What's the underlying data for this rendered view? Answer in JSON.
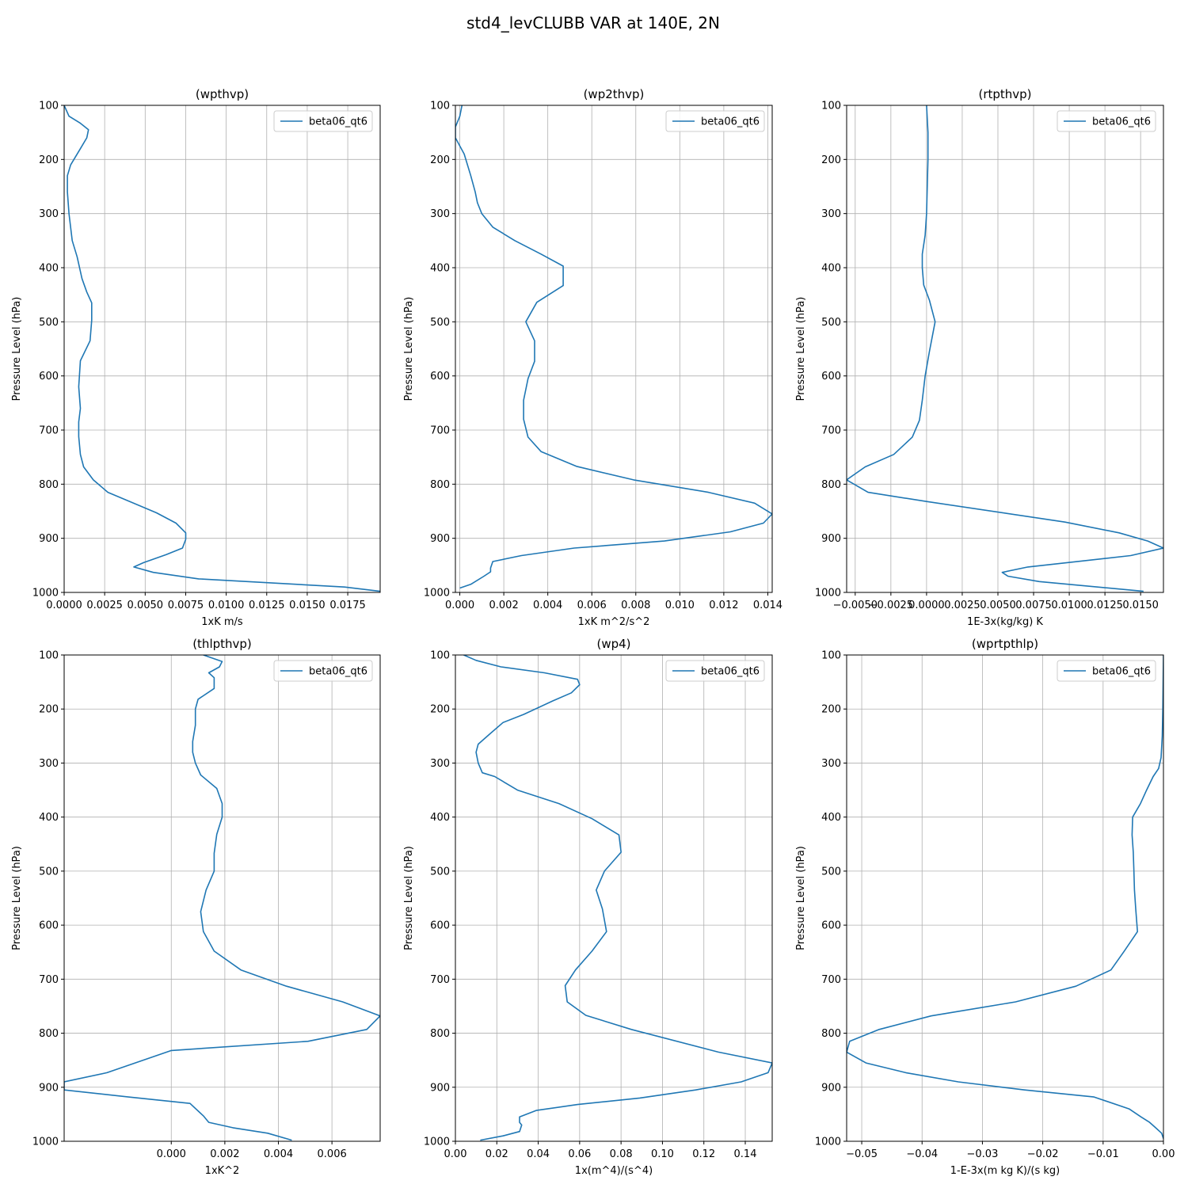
{
  "figure_title": "std4_levCLUBB VAR at 140E, 2N",
  "line_color": "#1f77b4",
  "grid_color": "#b0b0b0",
  "chart_data": [
    {
      "type": "line",
      "title": "(wpthvp)",
      "xlabel": "1xK m/s",
      "ylabel": "Pressure Level (hPa)",
      "xlim": [
        0.0,
        0.0195
      ],
      "ylim": [
        1000,
        100
      ],
      "y_inverted": true,
      "xticks": [
        0.0,
        0.0025,
        0.005,
        0.0075,
        0.01,
        0.0125,
        0.015,
        0.0175
      ],
      "xtick_labels": [
        "0.0000",
        "0.0025",
        "0.0050",
        "0.0075",
        "0.0100",
        "0.0125",
        "0.0150",
        "0.0175"
      ],
      "yticks": [
        100,
        200,
        300,
        400,
        500,
        600,
        700,
        800,
        900,
        1000
      ],
      "grid": true,
      "legend_loc": "upper right",
      "series": [
        {
          "name": "beta06_qt6",
          "x": [
            0.0,
            0.0003,
            0.001,
            0.0015,
            0.0014,
            0.001,
            0.0004,
            0.0002,
            0.0002,
            0.0003,
            0.0005,
            0.0008,
            0.0011,
            0.0014,
            0.0017,
            0.0017,
            0.0016,
            0.001,
            0.0009,
            0.001,
            0.0009,
            0.0009,
            0.001,
            0.0012,
            0.0018,
            0.0027,
            0.0057,
            0.0069,
            0.0075,
            0.0075,
            0.0073,
            0.0063,
            0.0049,
            0.0043,
            0.0055,
            0.0083,
            0.0173,
            0.0195
          ],
          "y": [
            100,
            120,
            133,
            145,
            160,
            180,
            210,
            230,
            260,
            300,
            350,
            380,
            420,
            445,
            465,
            497,
            535,
            572,
            620,
            660,
            685,
            712,
            745,
            768,
            792,
            815,
            853,
            872,
            890,
            902,
            918,
            930,
            945,
            953,
            963,
            975,
            990,
            998
          ]
        }
      ]
    },
    {
      "type": "line",
      "title": "(wp2thvp)",
      "xlabel": "1xK m^2/s^2",
      "ylabel": "Pressure Level (hPa)",
      "xlim": [
        -0.0002,
        0.0142
      ],
      "ylim": [
        1000,
        100
      ],
      "y_inverted": true,
      "xticks": [
        0.0,
        0.002,
        0.004,
        0.006,
        0.008,
        0.01,
        0.012,
        0.014
      ],
      "xtick_labels": [
        "0.000",
        "0.002",
        "0.004",
        "0.006",
        "0.008",
        "0.010",
        "0.012",
        "0.014"
      ],
      "yticks": [
        100,
        200,
        300,
        400,
        500,
        600,
        700,
        800,
        900,
        1000
      ],
      "grid": true,
      "legend_loc": "upper right",
      "series": [
        {
          "name": "beta06_qt6",
          "x": [
            0.0001,
            0.0,
            -0.0002,
            -0.0002,
            0.0002,
            0.0005,
            0.0007,
            0.0008,
            0.001,
            0.0015,
            0.0025,
            0.0037,
            0.0047,
            0.0047,
            0.0035,
            0.003,
            0.0034,
            0.0034,
            0.0031,
            0.0029,
            0.0029,
            0.0031,
            0.0037,
            0.0053,
            0.0079,
            0.0113,
            0.0134,
            0.0142,
            0.0138,
            0.0123,
            0.0093,
            0.0052,
            0.0028,
            0.0015,
            0.0014,
            0.0014,
            0.0011,
            0.0005,
            0.0
          ],
          "y": [
            100,
            120,
            140,
            160,
            190,
            230,
            260,
            280,
            300,
            325,
            350,
            375,
            397,
            433,
            464,
            500,
            535,
            573,
            605,
            645,
            680,
            713,
            740,
            767,
            792,
            815,
            835,
            855,
            872,
            888,
            905,
            918,
            932,
            943,
            955,
            962,
            970,
            985,
            992
          ]
        }
      ]
    },
    {
      "type": "line",
      "title": "(rtpthvp)",
      "xlabel": "1E-3x(kg/kg) K",
      "ylabel": "Pressure Level (hPa)",
      "xlim": [
        -0.0056,
        0.0166
      ],
      "ylim": [
        1000,
        100
      ],
      "y_inverted": true,
      "xticks": [
        -0.005,
        -0.0025,
        0.0,
        0.0025,
        0.005,
        0.0075,
        0.01,
        0.0125,
        0.015
      ],
      "xtick_labels": [
        "−0.0050",
        "−0.0025",
        "0.0000",
        "0.0025",
        "0.0050",
        "0.0075",
        "0.0100",
        "0.0125",
        "0.0150"
      ],
      "yticks": [
        100,
        200,
        300,
        400,
        500,
        600,
        700,
        800,
        900,
        1000
      ],
      "grid": true,
      "legend_loc": "upper right",
      "series": [
        {
          "name": "beta06_qt6",
          "x": [
            0.0,
            0.0001,
            0.0001,
            0.0,
            -0.0001,
            -0.0003,
            -0.0003,
            -0.0002,
            0.0002,
            0.0006,
            0.0002,
            -0.0001,
            -0.0003,
            -0.0005,
            -0.001,
            -0.0023,
            -0.0043,
            -0.0056,
            -0.0041,
            0.0,
            0.0097,
            0.0135,
            0.0155,
            0.0166,
            0.0143,
            0.0071,
            0.0053,
            0.0057,
            0.0079,
            0.0152
          ],
          "y": [
            100,
            150,
            200,
            300,
            340,
            375,
            400,
            432,
            460,
            500,
            555,
            600,
            645,
            682,
            713,
            745,
            768,
            792,
            815,
            832,
            870,
            890,
            905,
            918,
            932,
            953,
            963,
            970,
            980,
            998
          ]
        }
      ]
    },
    {
      "type": "line",
      "title": "(thlpthvp)",
      "xlabel": "1xK^2",
      "ylabel": "Pressure Level (hPa)",
      "xlim": [
        -0.004,
        0.0078
      ],
      "ylim": [
        1000,
        100
      ],
      "y_inverted": true,
      "xticks": [
        0.0,
        0.002,
        0.004,
        0.006
      ],
      "xtick_labels": [
        "0.000",
        "0.002",
        "0.004",
        "0.006"
      ],
      "yticks": [
        100,
        200,
        300,
        400,
        500,
        600,
        700,
        800,
        900,
        1000
      ],
      "grid": true,
      "legend_loc": "upper right",
      "series": [
        {
          "name": "beta06_qt6",
          "x": [
            0.0012,
            0.0019,
            0.0018,
            0.0014,
            0.0016,
            0.0016,
            0.001,
            0.0009,
            0.0009,
            0.0008,
            0.0008,
            0.0009,
            0.0011,
            0.0017,
            0.0019,
            0.0019,
            0.0017,
            0.0016,
            0.0016,
            0.0013,
            0.0011,
            0.0012,
            0.0016,
            0.0026,
            0.0043,
            0.0064,
            0.0078,
            0.0073,
            0.0051,
            0.0,
            -0.0024,
            -0.004,
            -0.004,
            -0.0016,
            0.0007,
            0.0012,
            0.0014,
            0.0023,
            0.0036,
            0.0045
          ],
          "y": [
            100,
            112,
            122,
            133,
            142,
            162,
            182,
            200,
            230,
            260,
            280,
            300,
            322,
            347,
            375,
            400,
            432,
            467,
            500,
            535,
            575,
            612,
            648,
            683,
            713,
            742,
            768,
            793,
            815,
            832,
            873,
            890,
            905,
            918,
            930,
            953,
            965,
            975,
            985,
            998
          ]
        }
      ]
    },
    {
      "type": "line",
      "title": "(wp4)",
      "xlabel": "1x(m^4)/(s^4)",
      "ylabel": "Pressure Level (hPa)",
      "xlim": [
        0.0,
        0.153
      ],
      "ylim": [
        1000,
        100
      ],
      "y_inverted": true,
      "xticks": [
        0.0,
        0.02,
        0.04,
        0.06,
        0.08,
        0.1,
        0.12,
        0.14
      ],
      "xtick_labels": [
        "0.00",
        "0.02",
        "0.04",
        "0.06",
        "0.08",
        "0.10",
        "0.12",
        "0.14"
      ],
      "yticks": [
        100,
        200,
        300,
        400,
        500,
        600,
        700,
        800,
        900,
        1000
      ],
      "grid": true,
      "legend_loc": "upper right",
      "series": [
        {
          "name": "beta06_qt6",
          "x": [
            0.004,
            0.01,
            0.022,
            0.043,
            0.059,
            0.06,
            0.056,
            0.047,
            0.033,
            0.023,
            0.017,
            0.011,
            0.01,
            0.011,
            0.013,
            0.019,
            0.03,
            0.05,
            0.066,
            0.079,
            0.08,
            0.072,
            0.068,
            0.071,
            0.073,
            0.066,
            0.058,
            0.053,
            0.054,
            0.063,
            0.085,
            0.127,
            0.153,
            0.151,
            0.138,
            0.116,
            0.089,
            0.059,
            0.039,
            0.031,
            0.031,
            0.032,
            0.031,
            0.023,
            0.012
          ],
          "y": [
            100,
            110,
            122,
            133,
            145,
            155,
            170,
            185,
            210,
            225,
            245,
            265,
            280,
            300,
            318,
            325,
            350,
            375,
            403,
            433,
            465,
            500,
            535,
            570,
            612,
            648,
            683,
            712,
            742,
            767,
            793,
            835,
            855,
            873,
            890,
            905,
            920,
            932,
            943,
            955,
            965,
            970,
            982,
            990,
            998
          ]
        }
      ]
    },
    {
      "type": "line",
      "title": "(wprtpthlp)",
      "xlabel": "1-E-3x(m kg K)/(s kg)",
      "ylabel": "Pressure Level (hPa)",
      "xlim": [
        -0.0525,
        0.0
      ],
      "ylim": [
        1000,
        100
      ],
      "y_inverted": true,
      "xticks": [
        -0.05,
        -0.04,
        -0.03,
        -0.02,
        -0.01,
        0.0
      ],
      "xtick_labels": [
        "−0.05",
        "−0.04",
        "−0.03",
        "−0.02",
        "−0.01",
        "0.00"
      ],
      "yticks": [
        100,
        200,
        300,
        400,
        500,
        600,
        700,
        800,
        900,
        1000
      ],
      "grid": true,
      "legend_loc": "upper right",
      "series": [
        {
          "name": "beta06_qt6",
          "x": [
            0.0,
            -0.0001,
            -0.0002,
            -0.0004,
            -0.0008,
            -0.0017,
            -0.0028,
            -0.0038,
            -0.0051,
            -0.0052,
            -0.005,
            -0.0049,
            -0.0048,
            -0.0046,
            -0.0043,
            -0.0065,
            -0.0087,
            -0.0145,
            -0.0245,
            -0.0385,
            -0.0471,
            -0.052,
            -0.0525,
            -0.0493,
            -0.0427,
            -0.034,
            -0.023,
            -0.0115,
            -0.0057,
            -0.0037,
            -0.0023,
            -0.0013,
            -0.0003,
            0.0
          ],
          "y": [
            100,
            200,
            250,
            290,
            310,
            325,
            350,
            375,
            400,
            433,
            465,
            500,
            535,
            570,
            612,
            648,
            683,
            713,
            742,
            768,
            793,
            815,
            835,
            855,
            873,
            890,
            905,
            918,
            940,
            955,
            965,
            975,
            985,
            995
          ]
        }
      ]
    }
  ]
}
